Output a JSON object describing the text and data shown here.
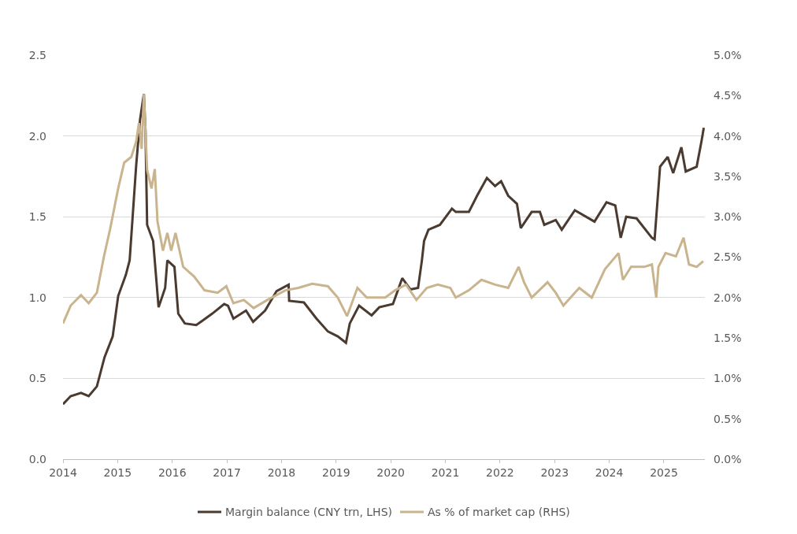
{
  "chart_data": {
    "type": "line",
    "legend": "bottom",
    "grid": "y",
    "marker": "none",
    "line_style": "solid",
    "xlim": [
      2014,
      2025.75
    ],
    "xticks": [
      2014,
      2015,
      2016,
      2017,
      2018,
      2019,
      2020,
      2021,
      2022,
      2023,
      2024,
      2025
    ],
    "ylim": [
      0,
      2.5
    ],
    "yticks": [
      {
        "value": 0,
        "label": "0.0"
      },
      0.5,
      {
        "value": 1,
        "label": "1.0"
      },
      1.5,
      {
        "value": 2,
        "label": "2.0"
      },
      2.5
    ],
    "y2lim": [
      0,
      5
    ],
    "y2ticks": [
      {
        "value": 0,
        "label": "0.0%"
      },
      {
        "value": 0.5,
        "label": "0.5%"
      },
      {
        "value": 1,
        "label": "1.0%"
      },
      {
        "value": 1.5,
        "label": "1.5%"
      },
      {
        "value": 2,
        "label": "2.0%"
      },
      {
        "value": 2.5,
        "label": "2.5%"
      },
      {
        "value": 3,
        "label": "3.0%"
      },
      {
        "value": 3.5,
        "label": "3.5%"
      },
      {
        "value": 4,
        "label": "4.0%"
      },
      {
        "value": 4.5,
        "label": "4.5%"
      },
      {
        "value": 5,
        "label": "5.0%"
      }
    ],
    "series": [
      {
        "name": "Margin balance (CNY trn, LHS)",
        "color": "#4a3a30",
        "x": [
          2014.0,
          2014.14,
          2014.33,
          2014.47,
          2014.62,
          2014.76,
          2014.91,
          2015.01,
          2015.15,
          2015.22,
          2015.34,
          2015.41,
          2015.48,
          2015.51,
          2015.54,
          2015.65,
          2015.75,
          2015.87,
          2015.91,
          2016.04,
          2016.11,
          2016.23,
          2016.44,
          2016.73,
          2016.95,
          2017.02,
          2017.12,
          2017.35,
          2017.48,
          2017.7,
          2017.91,
          2018.13,
          2018.14,
          2018.41,
          2018.64,
          2018.85,
          2019.03,
          2019.18,
          2019.25,
          2019.42,
          2019.65,
          2019.79,
          2020.04,
          2020.21,
          2020.36,
          2020.5,
          2020.57,
          2020.61,
          2020.69,
          2020.9,
          2021.12,
          2021.19,
          2021.43,
          2021.58,
          2021.76,
          2021.91,
          2022.02,
          2022.15,
          2022.31,
          2022.38,
          2022.58,
          2022.73,
          2022.81,
          2023.02,
          2023.13,
          2023.37,
          2023.73,
          2023.95,
          2024.11,
          2024.21,
          2024.31,
          2024.5,
          2024.78,
          2024.83,
          2024.93,
          2025.07,
          2025.17,
          2025.32,
          2025.4,
          2025.6,
          2025.69,
          2025.73
        ],
        "values": [
          0.34,
          0.39,
          0.41,
          0.39,
          0.45,
          0.63,
          0.76,
          1.01,
          1.14,
          1.23,
          1.82,
          2.1,
          2.26,
          2.03,
          1.45,
          1.35,
          0.94,
          1.06,
          1.23,
          1.19,
          0.9,
          0.84,
          0.83,
          0.9,
          0.96,
          0.95,
          0.87,
          0.92,
          0.85,
          0.92,
          1.04,
          1.08,
          0.98,
          0.97,
          0.87,
          0.79,
          0.76,
          0.72,
          0.84,
          0.95,
          0.89,
          0.94,
          0.96,
          1.12,
          1.05,
          1.06,
          1.23,
          1.35,
          1.42,
          1.45,
          1.55,
          1.53,
          1.53,
          1.63,
          1.74,
          1.69,
          1.72,
          1.63,
          1.58,
          1.43,
          1.53,
          1.53,
          1.45,
          1.48,
          1.42,
          1.54,
          1.47,
          1.59,
          1.57,
          1.37,
          1.5,
          1.49,
          1.37,
          1.36,
          1.81,
          1.87,
          1.77,
          1.93,
          1.78,
          1.81,
          1.97,
          2.05
        ]
      },
      {
        "name": "As % of market cap (RHS)",
        "color": "#c9b48e",
        "axis": "y2",
        "x": [
          2014.0,
          2014.14,
          2014.33,
          2014.47,
          2014.62,
          2014.75,
          2014.86,
          2015.01,
          2015.12,
          2015.25,
          2015.34,
          2015.39,
          2015.44,
          2015.48,
          2015.54,
          2015.62,
          2015.68,
          2015.73,
          2015.83,
          2015.91,
          2015.98,
          2016.06,
          2016.2,
          2016.4,
          2016.59,
          2016.83,
          2016.99,
          2017.02,
          2017.12,
          2017.31,
          2017.49,
          2017.74,
          2018.07,
          2018.31,
          2018.56,
          2018.85,
          2019.03,
          2019.2,
          2019.39,
          2019.56,
          2019.9,
          2020.08,
          2020.28,
          2020.47,
          2020.66,
          2020.86,
          2021.09,
          2021.19,
          2021.43,
          2021.66,
          2021.91,
          2022.15,
          2022.34,
          2022.44,
          2022.58,
          2022.87,
          2023.02,
          2023.16,
          2023.45,
          2023.68,
          2023.92,
          2024.17,
          2024.25,
          2024.4,
          2024.64,
          2024.78,
          2024.86,
          2024.9,
          2025.03,
          2025.22,
          2025.36,
          2025.46,
          2025.6,
          2025.72
        ],
        "values": [
          1.68,
          1.9,
          2.03,
          1.93,
          2.06,
          2.51,
          2.84,
          3.35,
          3.67,
          3.74,
          3.93,
          4.16,
          3.84,
          4.52,
          3.58,
          3.35,
          3.59,
          2.94,
          2.58,
          2.8,
          2.58,
          2.8,
          2.38,
          2.26,
          2.09,
          2.06,
          2.14,
          2.09,
          1.93,
          1.97,
          1.87,
          1.97,
          2.09,
          2.12,
          2.17,
          2.14,
          2.0,
          1.77,
          2.12,
          2.0,
          2.0,
          2.09,
          2.16,
          1.97,
          2.12,
          2.16,
          2.12,
          2.0,
          2.09,
          2.22,
          2.16,
          2.12,
          2.38,
          2.19,
          2.0,
          2.19,
          2.06,
          1.9,
          2.12,
          2.0,
          2.35,
          2.55,
          2.22,
          2.38,
          2.38,
          2.41,
          2.0,
          2.38,
          2.55,
          2.51,
          2.74,
          2.41,
          2.38,
          2.45
        ]
      }
    ]
  }
}
